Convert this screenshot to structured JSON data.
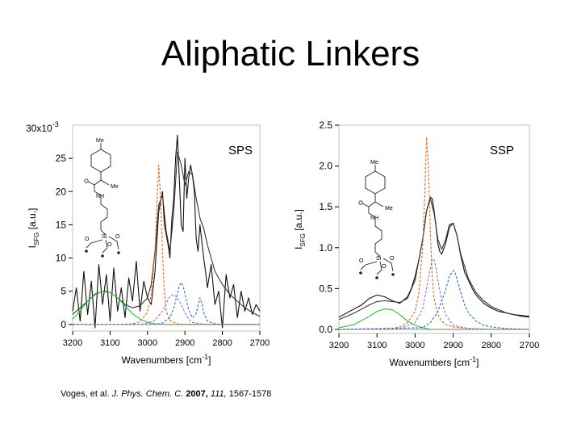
{
  "slide": {
    "title": "Aliphatic Linkers",
    "citation": {
      "authors": "Voges, et al.",
      "journal": "J. Phys. Chem. C.",
      "year": "2007,",
      "volume": "111,",
      "pages": "1567-1578"
    }
  },
  "molecule_labels": [
    "Me",
    "Me",
    "NH",
    "O",
    "Si",
    "O",
    "O"
  ],
  "colors": {
    "data": "#111111",
    "envelope": "#333333",
    "green": "#2ec02e",
    "orange": "#e8651c",
    "purple": "#9a6cc8",
    "blue": "#2a6fc8",
    "frame": "#cccccc"
  },
  "chart_data": [
    {
      "type": "line",
      "panel_label": "SPS",
      "xlabel": "Wavenumbers [cm",
      "xlabel_sup": "-1",
      "xlabel_end": "]",
      "ylabel_main": "I",
      "ylabel_sub": "SFG",
      "ylabel_end": " [a.u.]",
      "y_multiplier": "30x10",
      "y_multiplier_exp": "-3",
      "xlim": [
        3200,
        2700
      ],
      "ylim": [
        -1,
        30
      ],
      "x_ticks": [
        3200,
        3100,
        3000,
        2900,
        2800,
        2700
      ],
      "x_tick_labels": [
        "3200",
        "3100",
        "3000",
        "2900",
        "2800",
        "2700"
      ],
      "y_ticks": [
        0,
        5,
        10,
        15,
        20,
        25
      ],
      "y_tick_labels": [
        "0",
        "5",
        "10",
        "15",
        "20",
        "25"
      ],
      "grid": false,
      "series": [
        {
          "role": "data",
          "color": "#111111",
          "x": [
            3200,
            3190,
            3180,
            3170,
            3160,
            3150,
            3140,
            3130,
            3120,
            3110,
            3100,
            3090,
            3080,
            3070,
            3060,
            3050,
            3040,
            3030,
            3020,
            3010,
            3000,
            2990,
            2980,
            2970,
            2960,
            2955,
            2950,
            2945,
            2940,
            2935,
            2930,
            2925,
            2920,
            2915,
            2910,
            2905,
            2900,
            2895,
            2890,
            2885,
            2880,
            2875,
            2870,
            2865,
            2860,
            2855,
            2850,
            2845,
            2840,
            2830,
            2820,
            2810,
            2800,
            2790,
            2780,
            2770,
            2760,
            2750,
            2740,
            2730,
            2720,
            2710,
            2700
          ],
          "y": [
            2.0,
            5.5,
            0.5,
            8.0,
            1.5,
            6.5,
            -0.5,
            9.0,
            3.0,
            7.5,
            0.5,
            8.5,
            2.0,
            5.5,
            1.0,
            7.0,
            3.5,
            9.5,
            2.0,
            6.5,
            4.0,
            3.0,
            8.0,
            17.0,
            20.0,
            15.0,
            13.5,
            12.0,
            10.0,
            16.0,
            19.0,
            25.0,
            28.5,
            22.0,
            15.0,
            14.0,
            25.0,
            19.0,
            22.0,
            24.0,
            22.5,
            20.0,
            13.0,
            11.0,
            15.0,
            12.5,
            10.0,
            8.0,
            5.5,
            9.0,
            3.0,
            5.0,
            -0.5,
            7.5,
            4.0,
            6.0,
            1.0,
            5.0,
            2.0,
            4.0,
            1.5,
            3.0,
            2.0
          ]
        },
        {
          "role": "envelope",
          "color": "#333333",
          "x": [
            3200,
            3180,
            3160,
            3140,
            3120,
            3100,
            3080,
            3060,
            3040,
            3020,
            3000,
            2990,
            2980,
            2970,
            2960,
            2950,
            2940,
            2930,
            2920,
            2910,
            2900,
            2890,
            2880,
            2870,
            2860,
            2850,
            2840,
            2820,
            2800,
            2780,
            2760,
            2740,
            2720,
            2700
          ],
          "y": [
            1.5,
            2.5,
            3.5,
            4.5,
            5.0,
            4.8,
            4.0,
            3.0,
            2.5,
            2.8,
            4.0,
            6.0,
            11.0,
            18.0,
            19.5,
            14.0,
            11.0,
            17.0,
            26.0,
            24.0,
            21.0,
            23.0,
            22.5,
            19.0,
            16.0,
            14.5,
            12.0,
            8.0,
            6.0,
            4.5,
            3.5,
            2.5,
            1.8,
            1.2
          ]
        },
        {
          "role": "fit",
          "color": "#2ec02e",
          "x": [
            3200,
            3180,
            3160,
            3140,
            3120,
            3110,
            3100,
            3080,
            3060,
            3040,
            3020,
            3000,
            2980,
            2960,
            2940,
            2900,
            2800,
            2700
          ],
          "y": [
            0.8,
            2.0,
            3.5,
            4.6,
            5.0,
            5.0,
            4.8,
            4.0,
            2.8,
            1.6,
            0.8,
            0.3,
            0.1,
            0.0,
            0.0,
            0.0,
            0.0,
            0.0
          ]
        },
        {
          "role": "fit",
          "color": "#e8651c",
          "x": [
            3200,
            3060,
            3040,
            3020,
            3000,
            2990,
            2980,
            2975,
            2970,
            2965,
            2960,
            2955,
            2950,
            2940,
            2920,
            2900,
            2800,
            2700
          ],
          "y": [
            0.0,
            0.0,
            0.1,
            0.4,
            1.8,
            4.5,
            11.0,
            18.0,
            24.0,
            19.0,
            11.0,
            5.0,
            2.0,
            0.6,
            0.1,
            0.0,
            0.0,
            0.0
          ]
        },
        {
          "role": "fit",
          "color": "#9a6cc8",
          "x": [
            3200,
            3020,
            3000,
            2980,
            2960,
            2950,
            2940,
            2930,
            2920,
            2910,
            2900,
            2890,
            2880,
            2860,
            2840,
            2800,
            2700
          ],
          "y": [
            0.0,
            0.0,
            0.2,
            0.6,
            2.0,
            3.2,
            4.2,
            4.5,
            4.0,
            3.0,
            1.8,
            0.8,
            0.3,
            0.1,
            0.0,
            0.0,
            0.0
          ]
        },
        {
          "role": "fit",
          "color": "#2a6fc8",
          "x": [
            3200,
            2980,
            2960,
            2940,
            2930,
            2920,
            2915,
            2910,
            2905,
            2900,
            2890,
            2880,
            2870,
            2865,
            2860,
            2855,
            2850,
            2840,
            2820,
            2800,
            2700
          ],
          "y": [
            0.0,
            0.0,
            0.2,
            1.0,
            2.5,
            4.6,
            5.8,
            6.3,
            5.8,
            4.6,
            2.2,
            1.0,
            1.6,
            2.8,
            4.0,
            3.2,
            1.8,
            0.5,
            0.1,
            0.0,
            0.0
          ]
        }
      ]
    },
    {
      "type": "line",
      "panel_label": "SSP",
      "xlabel": "Wavenumbers [cm",
      "xlabel_sup": "-1",
      "xlabel_end": "]",
      "ylabel_main": "I",
      "ylabel_sub": "SFG",
      "ylabel_end": " [a.u.]",
      "xlim": [
        3200,
        2700
      ],
      "ylim": [
        -0.05,
        2.5
      ],
      "x_ticks": [
        3200,
        3100,
        3000,
        2900,
        2800,
        2700
      ],
      "x_tick_labels": [
        "3200",
        "3100",
        "3000",
        "2900",
        "2800",
        "2700"
      ],
      "y_ticks": [
        0.0,
        0.5,
        1.0,
        1.5,
        2.0,
        2.5
      ],
      "y_tick_labels": [
        "0.0",
        "0.5",
        "1.0",
        "1.5",
        "2.0",
        "2.5"
      ],
      "grid": false,
      "series": [
        {
          "role": "data",
          "color": "#111111",
          "x": [
            3200,
            3180,
            3160,
            3140,
            3120,
            3100,
            3080,
            3060,
            3040,
            3020,
            3010,
            3000,
            2990,
            2980,
            2970,
            2960,
            2955,
            2950,
            2945,
            2940,
            2935,
            2930,
            2920,
            2910,
            2900,
            2890,
            2880,
            2870,
            2860,
            2850,
            2840,
            2820,
            2800,
            2780,
            2760,
            2740,
            2720,
            2700
          ],
          "y": [
            0.15,
            0.2,
            0.25,
            0.3,
            0.38,
            0.42,
            0.4,
            0.35,
            0.32,
            0.4,
            0.5,
            0.65,
            0.85,
            1.1,
            1.45,
            1.62,
            1.6,
            1.45,
            1.25,
            1.05,
            0.95,
            0.92,
            1.05,
            1.25,
            1.3,
            1.15,
            0.9,
            0.7,
            0.6,
            0.5,
            0.42,
            0.32,
            0.26,
            0.22,
            0.2,
            0.18,
            0.17,
            0.16
          ]
        },
        {
          "role": "envelope",
          "color": "#333333",
          "x": [
            3200,
            3160,
            3120,
            3100,
            3080,
            3060,
            3040,
            3020,
            3000,
            2990,
            2980,
            2970,
            2960,
            2950,
            2940,
            2930,
            2920,
            2910,
            2900,
            2890,
            2880,
            2860,
            2840,
            2820,
            2800,
            2760,
            2720,
            2700
          ],
          "y": [
            0.12,
            0.2,
            0.3,
            0.34,
            0.35,
            0.34,
            0.33,
            0.38,
            0.6,
            0.85,
            1.1,
            1.45,
            1.6,
            1.42,
            1.1,
            0.98,
            1.1,
            1.28,
            1.3,
            1.15,
            0.92,
            0.62,
            0.45,
            0.35,
            0.28,
            0.2,
            0.16,
            0.15
          ]
        },
        {
          "role": "fit",
          "color": "#2ec02e",
          "x": [
            3200,
            3160,
            3120,
            3100,
            3080,
            3060,
            3040,
            3020,
            3000,
            2980,
            2960,
            2920,
            2800,
            2700
          ],
          "y": [
            0.02,
            0.06,
            0.16,
            0.22,
            0.25,
            0.24,
            0.18,
            0.1,
            0.05,
            0.02,
            0.0,
            0.0,
            0.0,
            0.0
          ]
        },
        {
          "role": "fit",
          "color": "#e8651c",
          "x": [
            3200,
            3060,
            3040,
            3020,
            3000,
            2990,
            2980,
            2975,
            2970,
            2965,
            2960,
            2955,
            2950,
            2940,
            2930,
            2920,
            2900,
            2860,
            2800,
            2700
          ],
          "y": [
            0.0,
            0.01,
            0.03,
            0.08,
            0.22,
            0.45,
            1.0,
            1.6,
            2.35,
            2.0,
            1.2,
            0.65,
            0.38,
            0.18,
            0.1,
            0.06,
            0.03,
            0.01,
            0.0,
            0.0
          ]
        },
        {
          "role": "fit",
          "color": "#9a6cc8",
          "x": [
            3200,
            3040,
            3000,
            2980,
            2970,
            2960,
            2955,
            2950,
            2945,
            2940,
            2930,
            2920,
            2900,
            2860,
            2800,
            2700
          ],
          "y": [
            0.0,
            0.01,
            0.08,
            0.25,
            0.5,
            0.75,
            0.86,
            0.85,
            0.75,
            0.6,
            0.35,
            0.18,
            0.05,
            0.01,
            0.0,
            0.0
          ]
        },
        {
          "role": "fit",
          "color": "#2a6fc8",
          "x": [
            3200,
            2980,
            2960,
            2940,
            2920,
            2910,
            2900,
            2895,
            2890,
            2880,
            2870,
            2860,
            2840,
            2820,
            2800,
            2760,
            2700
          ],
          "y": [
            0.0,
            0.02,
            0.08,
            0.22,
            0.48,
            0.65,
            0.72,
            0.7,
            0.62,
            0.45,
            0.3,
            0.2,
            0.1,
            0.05,
            0.03,
            0.01,
            0.0
          ]
        }
      ]
    }
  ]
}
